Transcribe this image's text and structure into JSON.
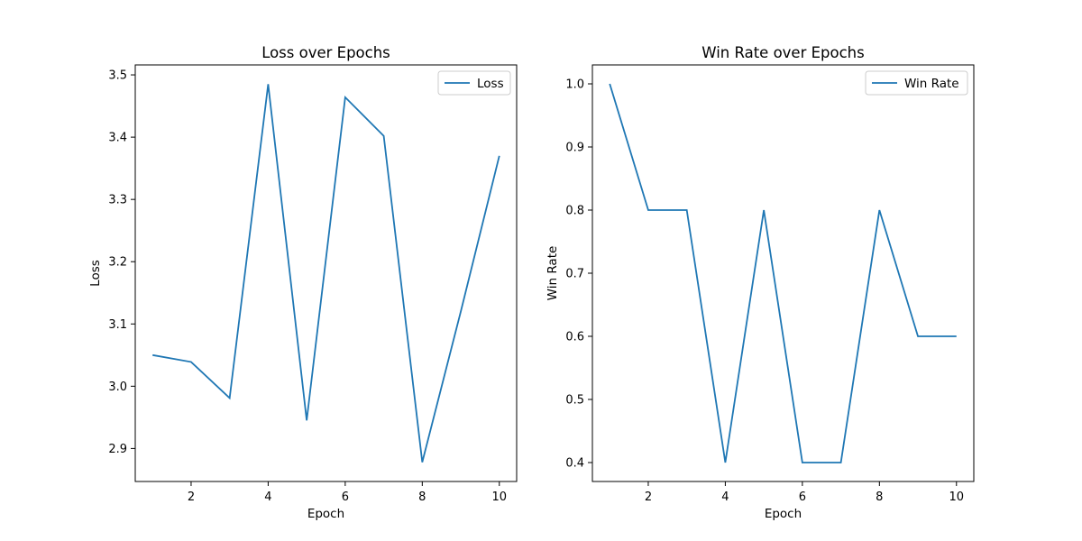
{
  "chart_data": [
    {
      "type": "line",
      "title": "Loss over Epochs",
      "xlabel": "Epoch",
      "ylabel": "Loss",
      "x": [
        1,
        2,
        3,
        4,
        5,
        6,
        7,
        8,
        9,
        10
      ],
      "series": [
        {
          "name": "Loss",
          "values": [
            3.05,
            3.039,
            2.981,
            3.485,
            2.945,
            3.464,
            3.402,
            2.878,
            3.12,
            3.37
          ],
          "color": "#1f77b4"
        }
      ],
      "xlim": [
        0.55,
        10.45
      ],
      "ylim": [
        2.847,
        3.516
      ],
      "xticks": [
        2,
        4,
        6,
        8,
        10
      ],
      "xtick_labels": [
        "2",
        "4",
        "6",
        "8",
        "10"
      ],
      "yticks": [
        2.9,
        3.0,
        3.1,
        3.2,
        3.3,
        3.4,
        3.5
      ],
      "ytick_labels": [
        "2.9",
        "3.0",
        "3.1",
        "3.2",
        "3.3",
        "3.4",
        "3.5"
      ],
      "grid": false,
      "legend_position": "upper right"
    },
    {
      "type": "line",
      "title": "Win Rate over Epochs",
      "xlabel": "Epoch",
      "ylabel": "Win Rate",
      "x": [
        1,
        2,
        3,
        4,
        5,
        6,
        7,
        8,
        9,
        10
      ],
      "series": [
        {
          "name": "Win Rate",
          "values": [
            1.0,
            0.8,
            0.8,
            0.4,
            0.8,
            0.4,
            0.4,
            0.8,
            0.6,
            0.6
          ],
          "color": "#1f77b4"
        }
      ],
      "xlim": [
        0.55,
        10.45
      ],
      "ylim": [
        0.37,
        1.03
      ],
      "xticks": [
        2,
        4,
        6,
        8,
        10
      ],
      "xtick_labels": [
        "2",
        "4",
        "6",
        "8",
        "10"
      ],
      "yticks": [
        0.4,
        0.5,
        0.6,
        0.7,
        0.8,
        0.9,
        1.0
      ],
      "ytick_labels": [
        "0.4",
        "0.5",
        "0.6",
        "0.7",
        "0.8",
        "0.9",
        "1.0"
      ],
      "grid": false,
      "legend_position": "upper right"
    }
  ]
}
